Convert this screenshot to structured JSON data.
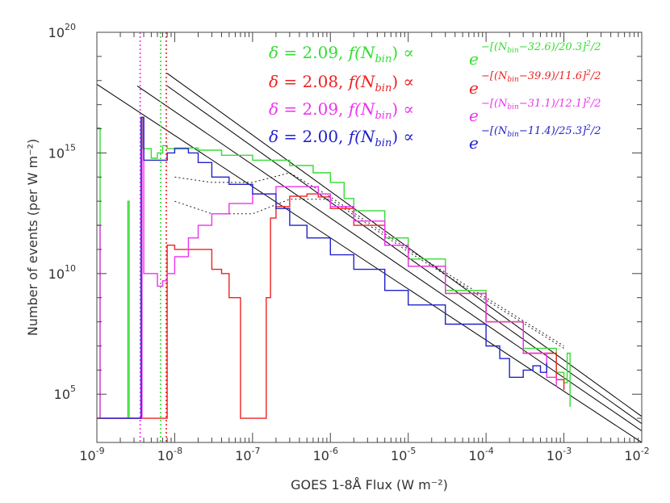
{
  "chart_data": {
    "type": "line",
    "xlabel": "GOES 1-8Å Flux (W m⁻²)",
    "ylabel": "Number of events (per W m⁻²)",
    "xscale": "log",
    "yscale": "log",
    "xlim": [
      1e-09,
      0.01
    ],
    "ylim": [
      1000.0,
      1e+20
    ],
    "x_ticks": [
      {
        "base": "10",
        "exp": "-9"
      },
      {
        "base": "10",
        "exp": "-8"
      },
      {
        "base": "10",
        "exp": "-7"
      },
      {
        "base": "10",
        "exp": "-6"
      },
      {
        "base": "10",
        "exp": "-5"
      },
      {
        "base": "10",
        "exp": "-4"
      },
      {
        "base": "10",
        "exp": "-3"
      },
      {
        "base": "10",
        "exp": "-2"
      }
    ],
    "y_ticks": [
      {
        "base": "10",
        "exp": "5"
      },
      {
        "base": "10",
        "exp": "10"
      },
      {
        "base": "10",
        "exp": "15"
      },
      {
        "base": "10",
        "exp": "20"
      }
    ],
    "grid": false,
    "annotations": [
      {
        "delta": "2.09",
        "mu": "32.6",
        "sigma": "20.3",
        "color": "#33dd33"
      },
      {
        "delta": "2.08",
        "mu": "39.9",
        "sigma": "11.6",
        "color": "#ee2222"
      },
      {
        "delta": "2.09",
        "mu": "31.1",
        "sigma": "12.1",
        "color": "#ee33ee"
      },
      {
        "delta": "2.00",
        "mu": "11.4",
        "sigma": "25.3",
        "color": "#2222cc"
      }
    ],
    "vlines": [
      {
        "x": 3.6e-09,
        "color": "#ee33ee"
      },
      {
        "x": 6.6e-09,
        "color": "#33dd33"
      },
      {
        "x": 7.8e-09,
        "color": "#ee2222"
      }
    ],
    "series": [
      {
        "color": "#33dd33",
        "points": [
          [
            1e-09,
            1.1e+16
          ],
          [
            1.1e-09,
            10000.0
          ],
          [
            2.4e-09,
            10000.0
          ],
          [
            2.5e-09,
            10000000000000.0
          ],
          [
            2.6e-09,
            10000.0
          ],
          [
            3.6e-09,
            10000.0
          ],
          [
            3.7e-09,
            3e+16
          ],
          [
            3.9e-09,
            1500000000000000.0
          ],
          [
            5e-09,
            600000000000000.0
          ],
          [
            6e-09,
            1000000000000000.0
          ],
          [
            7e-09,
            2000000000000000.0
          ],
          [
            8e-09,
            1500000000000000.0
          ],
          [
            1e-08,
            1600000000000000.0
          ],
          [
            2e-08,
            1300000000000000.0
          ],
          [
            4e-08,
            800000000000000.0
          ],
          [
            1e-07,
            500000000000000.0
          ],
          [
            3e-07,
            300000000000000.0
          ],
          [
            6e-07,
            150000000000000.0
          ],
          [
            1e-06,
            60000000000000.0
          ],
          [
            1.5e-06,
            13000000000000.0
          ],
          [
            2e-06,
            4000000000000.0
          ],
          [
            5e-06,
            300000000000.0
          ],
          [
            1e-05,
            40000000000.0
          ],
          [
            3e-05,
            2000000000.0
          ],
          [
            0.0001,
            100000000.0
          ],
          [
            0.0003,
            8000000.0
          ],
          [
            0.0008,
            800000.0
          ],
          [
            0.001,
            300000.0
          ],
          [
            0.0011,
            5000000.0
          ],
          [
            0.0012,
            30000.0
          ]
        ]
      },
      {
        "color": "#ee2222",
        "points": [
          [
            1e-09,
            10000.0
          ],
          [
            7.8e-09,
            10000.0
          ],
          [
            8e-09,
            150000000000.0
          ],
          [
            1e-08,
            100000000000.0
          ],
          [
            2e-08,
            100000000000.0
          ],
          [
            3e-08,
            15000000000.0
          ],
          [
            4e-08,
            10000000000.0
          ],
          [
            5e-08,
            1000000000.0
          ],
          [
            7e-08,
            10000.0
          ],
          [
            1.4e-07,
            10000.0
          ],
          [
            1.5e-07,
            1000000000.0
          ],
          [
            1.7e-07,
            2000000000000.0
          ],
          [
            2e-07,
            6000000000000.0
          ],
          [
            3e-07,
            16000000000000.0
          ],
          [
            5e-07,
            20000000000000.0
          ],
          [
            7e-07,
            15000000000000.0
          ],
          [
            1e-06,
            5000000000000.0
          ],
          [
            2e-06,
            1000000000000.0
          ],
          [
            5e-06,
            150000000000.0
          ],
          [
            1e-05,
            20000000000.0
          ],
          [
            3e-05,
            1500000000.0
          ],
          [
            0.0001,
            100000000.0
          ],
          [
            0.0003,
            5000000.0
          ],
          [
            0.0008,
            400000.0
          ],
          [
            0.001,
            150000.0
          ]
        ]
      },
      {
        "color": "#ee33ee",
        "points": [
          [
            1e-09,
            1000000000000.0
          ],
          [
            1.1e-09,
            10000.0
          ],
          [
            3.6e-09,
            10000.0
          ],
          [
            3.8e-09,
            3e+16
          ],
          [
            4e-09,
            10000000000.0
          ],
          [
            5e-09,
            10000000000.0
          ],
          [
            6e-09,
            3000000000.0
          ],
          [
            7e-09,
            5000000000.0
          ],
          [
            8e-09,
            10000000000.0
          ],
          [
            1e-08,
            50000000000.0
          ],
          [
            1.5e-08,
            300000000000.0
          ],
          [
            2e-08,
            1000000000000.0
          ],
          [
            3e-08,
            3000000000000.0
          ],
          [
            5e-08,
            8000000000000.0
          ],
          [
            1e-07,
            20000000000000.0
          ],
          [
            2e-07,
            40000000000000.0
          ],
          [
            4e-07,
            40000000000000.0
          ],
          [
            7e-07,
            20000000000000.0
          ],
          [
            1e-06,
            6000000000000.0
          ],
          [
            2e-06,
            1500000000000.0
          ],
          [
            5e-06,
            150000000000.0
          ],
          [
            1e-05,
            20000000000.0
          ],
          [
            3e-05,
            1500000000.0
          ],
          [
            0.0001,
            100000000.0
          ],
          [
            0.0003,
            5000000.0
          ],
          [
            0.0006,
            500000.0
          ],
          [
            0.0008,
            200000.0
          ]
        ]
      },
      {
        "color": "#2222cc",
        "points": [
          [
            1e-09,
            10000.0
          ],
          [
            3.5e-09,
            10000.0
          ],
          [
            3.7e-09,
            3e+16
          ],
          [
            4e-09,
            500000000000000.0
          ],
          [
            6e-09,
            500000000000000.0
          ],
          [
            8e-09,
            1000000000000000.0
          ],
          [
            1e-08,
            1500000000000000.0
          ],
          [
            1.5e-08,
            1000000000000000.0
          ],
          [
            2e-08,
            400000000000000.0
          ],
          [
            3e-08,
            100000000000000.0
          ],
          [
            5e-08,
            50000000000000.0
          ],
          [
            1e-07,
            20000000000000.0
          ],
          [
            2e-07,
            5000000000000.0
          ],
          [
            3e-07,
            1000000000000.0
          ],
          [
            5e-07,
            300000000000.0
          ],
          [
            1e-06,
            60000000000.0
          ],
          [
            2e-06,
            15000000000.0
          ],
          [
            5e-06,
            2000000000.0
          ],
          [
            1e-05,
            500000000.0
          ],
          [
            3e-05,
            80000000.0
          ],
          [
            0.0001,
            10000000.0
          ],
          [
            0.00015,
            3000000.0
          ],
          [
            0.0002,
            500000.0
          ],
          [
            0.0003,
            1000000.0
          ],
          [
            0.0004,
            1500000.0
          ],
          [
            0.0005,
            800000.0
          ],
          [
            0.0006,
            2000000.0
          ]
        ]
      }
    ],
    "fits": [
      {
        "type": "dotted",
        "color": "#222222",
        "points": [
          [
            1e-08,
            100000000000000.0
          ],
          [
            3e-08,
            60000000000000.0
          ],
          [
            1e-07,
            60000000000000.0
          ],
          [
            3e-07,
            150000000000000.0
          ],
          [
            1e-06,
            15000000000000.0
          ],
          [
            1e-05,
            100000000000.0
          ],
          [
            0.0001,
            1000000000.0
          ],
          [
            0.001,
            10000000.0
          ]
        ]
      },
      {
        "type": "dotted",
        "color": "#222222",
        "points": [
          [
            1e-08,
            10000000000000.0
          ],
          [
            3e-08,
            3000000000000.0
          ],
          [
            1e-07,
            3000000000000.0
          ],
          [
            3e-07,
            12000000000000.0
          ],
          [
            1e-06,
            12000000000000.0
          ],
          [
            1e-05,
            80000000000.0
          ],
          [
            0.0001,
            800000000.0
          ],
          [
            0.001,
            8000000.0
          ]
        ]
      },
      {
        "type": "line",
        "color": "#000000",
        "points": [
          [
            1e-09,
            7e+17
          ],
          [
            0.01,
            1000.0
          ]
        ]
      },
      {
        "type": "line",
        "color": "#000000",
        "points": [
          [
            3.3e-09,
            6e+17
          ],
          [
            0.01,
            3000.0
          ]
        ]
      },
      {
        "type": "line",
        "color": "#000000",
        "points": [
          [
            8e-09,
            2e+18
          ],
          [
            0.01,
            12000.0
          ]
        ]
      },
      {
        "type": "line",
        "color": "#000000",
        "points": [
          [
            8e-09,
            6e+17
          ],
          [
            0.01,
            6000.0
          ]
        ]
      }
    ]
  }
}
